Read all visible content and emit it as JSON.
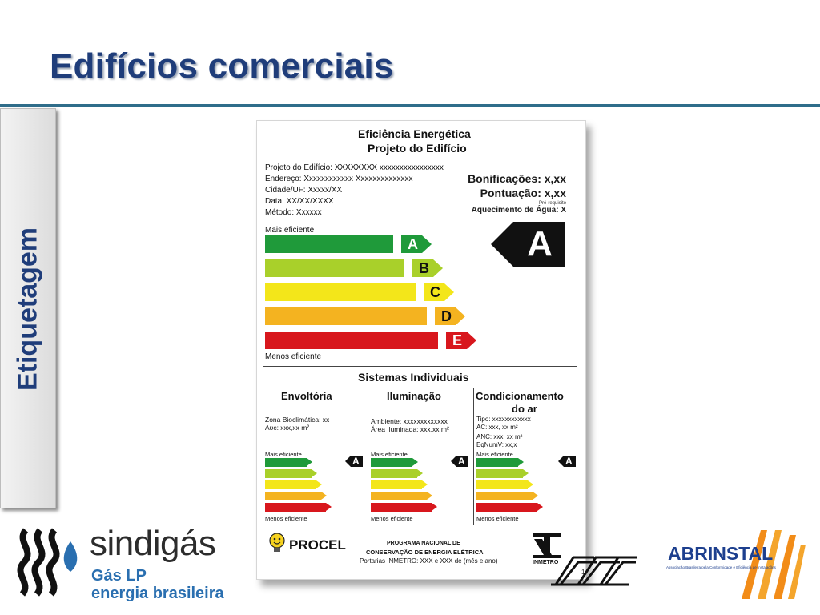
{
  "slide": {
    "title": "Edifícios comerciais",
    "sidebar_label": "Etiquetagem",
    "page_number": "1"
  },
  "label": {
    "heading1": "Eficiência Energética",
    "heading2": "Projeto do Edifício",
    "info": [
      "Projeto do Edifício: XXXXXXXX xxxxxxxxxxxxxxxx",
      "Endereço: Xxxxxxxxxxxx Xxxxxxxxxxxxxx",
      "Cidade/UF: Xxxxx/XX",
      "Data: XX/XX/XXXX",
      "Método: Xxxxxx"
    ],
    "bonificacoes": "Bonificações: x,xx",
    "pontuacao": "Pontuação: x,xx",
    "pre_requisito": "Pré-requisito",
    "aquecimento": "Aquecimento  de Água: X",
    "mais_eficiente": "Mais eficiente",
    "menos_eficiente": "Menos eficiente",
    "grade": "A",
    "classes": [
      "A",
      "B",
      "C",
      "D",
      "E"
    ],
    "class_colors": [
      "#1f9a3a",
      "#a9d02a",
      "#f3e61a",
      "#f4b320",
      "#d8171d"
    ],
    "sistemas_title": "Sistemas Individuais",
    "systems": [
      {
        "title": "Envoltória",
        "lines": [
          "Zona Bioclimática: xx",
          "Aᴜᴄ: xxx,xx m²"
        ],
        "grade": "A"
      },
      {
        "title": "Iluminação",
        "lines": [
          "Ambiente: xxxxxxxxxxxxx",
          "Área Iluminada: xxx,xx m²"
        ],
        "grade": "A"
      },
      {
        "title": "Condicionamento",
        "title2": "do ar",
        "lines": [
          "Tipo: xxxxxxxxxxxx",
          "AC: xxx, xx m²",
          "ANC:  xxx, xx m²",
          "EqNumV: xx,x"
        ],
        "grade": "A"
      }
    ],
    "procel": "PROCEL",
    "programa1": "PROGRAMA NACIONAL DE",
    "programa2": "CONSERVAÇÃO DE ENERGIA ELÉTRICA",
    "portarias": "Portarias INMETRO: XXX  e XXX de (mês e ano)",
    "inmetro": "INMETRO"
  },
  "logos": {
    "sindigas": "sindigás",
    "gas_lp": "Gás LP",
    "energia": "energia brasileira",
    "abrinstal": "ABRINSTAL",
    "abrinstal_sub": "Associação Brasileira pela Conformidade e Eficiência de Instalações"
  },
  "colors": {
    "title": "#1f3d7a",
    "rule": "#2f6d8a",
    "sindigas_blue": "#2a6fb0"
  }
}
